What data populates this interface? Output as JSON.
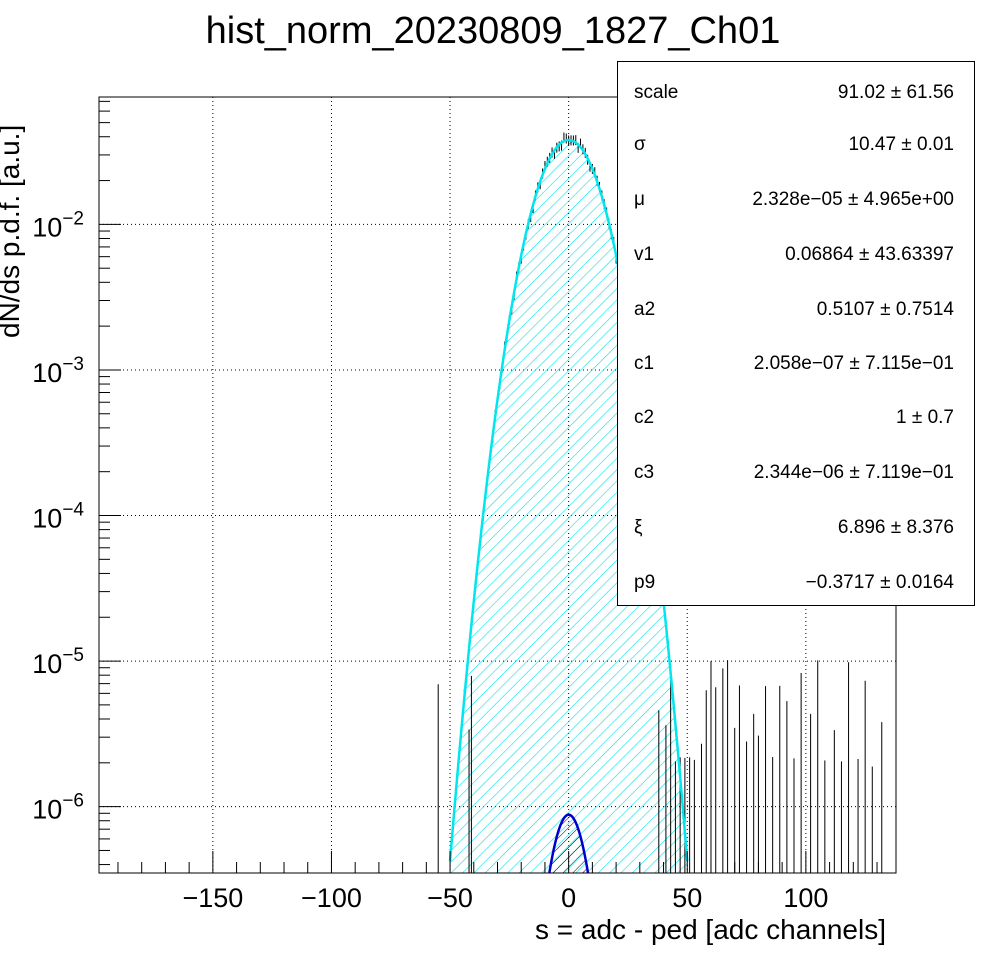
{
  "chart_data": {
    "type": "histogram",
    "title": "hist_norm_20230809_1827_Ch01",
    "xlabel": "s = adc - ped [adc channels]",
    "ylabel": "dN/ds p.d.f. [a.u.]",
    "xlim": [
      -198,
      138
    ],
    "ylog": true,
    "ylim": [
      3.5e-07,
      0.075
    ],
    "grid": true,
    "x_ticks": [
      -150,
      -100,
      -50,
      0,
      50,
      100
    ],
    "y_ticks": [
      {
        "exp": "-2",
        "value": 0.01
      },
      {
        "exp": "-3",
        "value": 0.001
      },
      {
        "exp": "-4",
        "value": 0.0001
      },
      {
        "exp": "-5",
        "value": 1e-05
      },
      {
        "exp": "-6",
        "value": 1e-06
      }
    ],
    "y_tick_base": "10",
    "fit_curve": {
      "color": "#00e5ee",
      "peak_x": 0,
      "peak_y": 0.038,
      "sigma": 10.47,
      "x_range": [
        -50,
        50
      ]
    },
    "signal_component": {
      "color": "#0000cc",
      "peak_x": 0,
      "peak_y": 8.8e-07,
      "sigma": 6.0,
      "x_range": [
        -14,
        14
      ]
    },
    "stats": [
      {
        "name": "scale",
        "value": "91.02",
        "error": "61.56"
      },
      {
        "name": "σ",
        "value": "10.47",
        "error": "0.01"
      },
      {
        "name": "μ",
        "value": "2.328e−05",
        "error": "4.965e+00"
      },
      {
        "name": "v1",
        "value": "0.06864",
        "error": "43.63397"
      },
      {
        "name": "a2",
        "value": "0.5107",
        "error": "0.7514"
      },
      {
        "name": "c1",
        "value": "2.058e−07",
        "error": "7.115e−01"
      },
      {
        "name": "c2",
        "value": "1",
        "error": "0.7"
      },
      {
        "name": "c3",
        "value": "2.344e−06",
        "error": "7.119e−01"
      },
      {
        "name": "ξ",
        "value": "6.896",
        "error": "8.376"
      },
      {
        "name": "p9",
        "value": "−0.3717",
        "error": "0.0164"
      }
    ],
    "pm_symbol": "±"
  }
}
